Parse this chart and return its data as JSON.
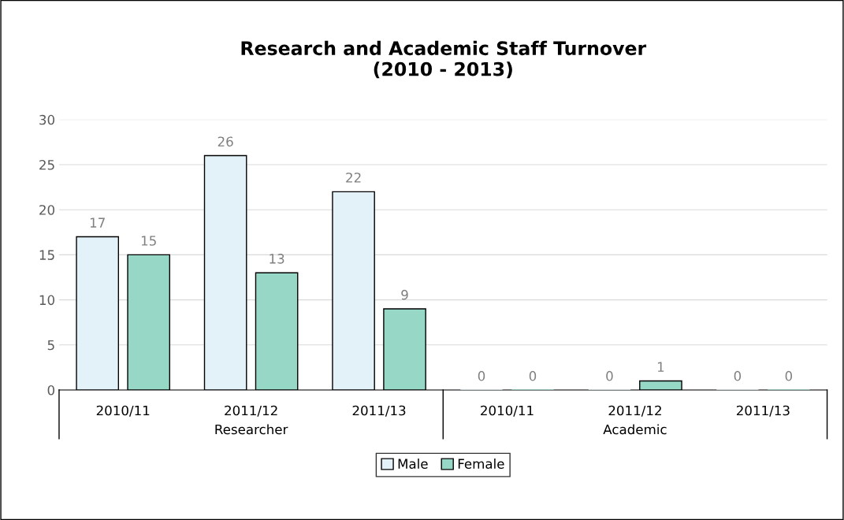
{
  "chart_data": {
    "type": "bar",
    "title": "Research and Academic Staff Turnover\n(2010 - 2013)",
    "categories": [
      "2010/11",
      "2011/12",
      "2011/13",
      "2010/11",
      "2011/12",
      "2011/13"
    ],
    "series": [
      {
        "name": "Male",
        "color": "#e3f2f9",
        "values": [
          17,
          26,
          22,
          0,
          0,
          0
        ]
      },
      {
        "name": "Female",
        "color": "#97d7c6",
        "values": [
          15,
          13,
          9,
          0,
          1,
          0
        ]
      }
    ],
    "annotations": [
      "Researcher",
      "Academic"
    ],
    "ylim": [
      0,
      30
    ],
    "yticks": [
      0,
      5,
      10,
      15,
      20,
      25,
      30
    ],
    "grid": "y",
    "legend": "bottom",
    "data_labels": true
  }
}
